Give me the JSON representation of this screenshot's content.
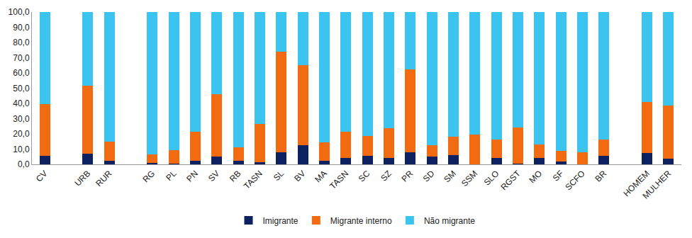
{
  "chart_data": {
    "type": "bar",
    "stacked": true,
    "grid": false,
    "legend": "bottom",
    "categories": [
      "CV",
      null,
      "URB",
      "RUR",
      null,
      "RG",
      "PL",
      "PN",
      "SV",
      "RB",
      "TASN",
      "SL",
      "BV",
      "MA",
      "TASN",
      "SC",
      "SZ",
      "PR",
      "SD",
      "SM",
      "SSM",
      "SLO",
      "RGST",
      "MO",
      "SF",
      "SCFO",
      "BR",
      null,
      "HOMEM",
      "MULHER"
    ],
    "series": [
      {
        "name": "Imigrante",
        "color": "#0d2160",
        "values": [
          5.5,
          null,
          7,
          2.5,
          null,
          1,
          0.5,
          2.5,
          5,
          2.5,
          1.5,
          8,
          12.5,
          2.5,
          4,
          5.5,
          4,
          8,
          5,
          6,
          0,
          4,
          0.5,
          4,
          2,
          0,
          5.5,
          null,
          7.5,
          3.5
        ]
      },
      {
        "name": "Migrante interno",
        "color": "#f26b10",
        "values": [
          34,
          null,
          44.5,
          12.5,
          null,
          5.5,
          9,
          19,
          41,
          8.5,
          25,
          66,
          52.5,
          12,
          17.5,
          13,
          19.5,
          54.5,
          7.5,
          12,
          19.5,
          12.5,
          23.5,
          9,
          7,
          8,
          11,
          null,
          33.5,
          35
        ]
      },
      {
        "name": "Não migrante",
        "color": "#3cc4f0",
        "values": [
          60.5,
          null,
          48.5,
          85,
          null,
          93.5,
          90.5,
          78.5,
          54,
          89,
          73.5,
          26,
          35,
          85.5,
          78.5,
          81.5,
          76.5,
          37.5,
          87.5,
          82,
          80.5,
          83.5,
          76,
          87,
          91,
          92,
          83.5,
          null,
          59,
          61.5
        ]
      }
    ],
    "ylim": [
      0,
      100
    ],
    "yticks": [
      {
        "value": 0,
        "label": "0,0"
      },
      {
        "value": 10,
        "label": "10,0"
      },
      {
        "value": 20,
        "label": "20,0"
      },
      {
        "value": 30,
        "label": "30,0"
      },
      {
        "value": 40,
        "label": "40,0"
      },
      {
        "value": 50,
        "label": "50,0"
      },
      {
        "value": 60,
        "label": "60,0"
      },
      {
        "value": 70,
        "label": "70,0"
      },
      {
        "value": 80,
        "label": "80,0"
      },
      {
        "value": 90,
        "label": "90,0"
      },
      {
        "value": 100,
        "label": "100,0"
      }
    ]
  }
}
